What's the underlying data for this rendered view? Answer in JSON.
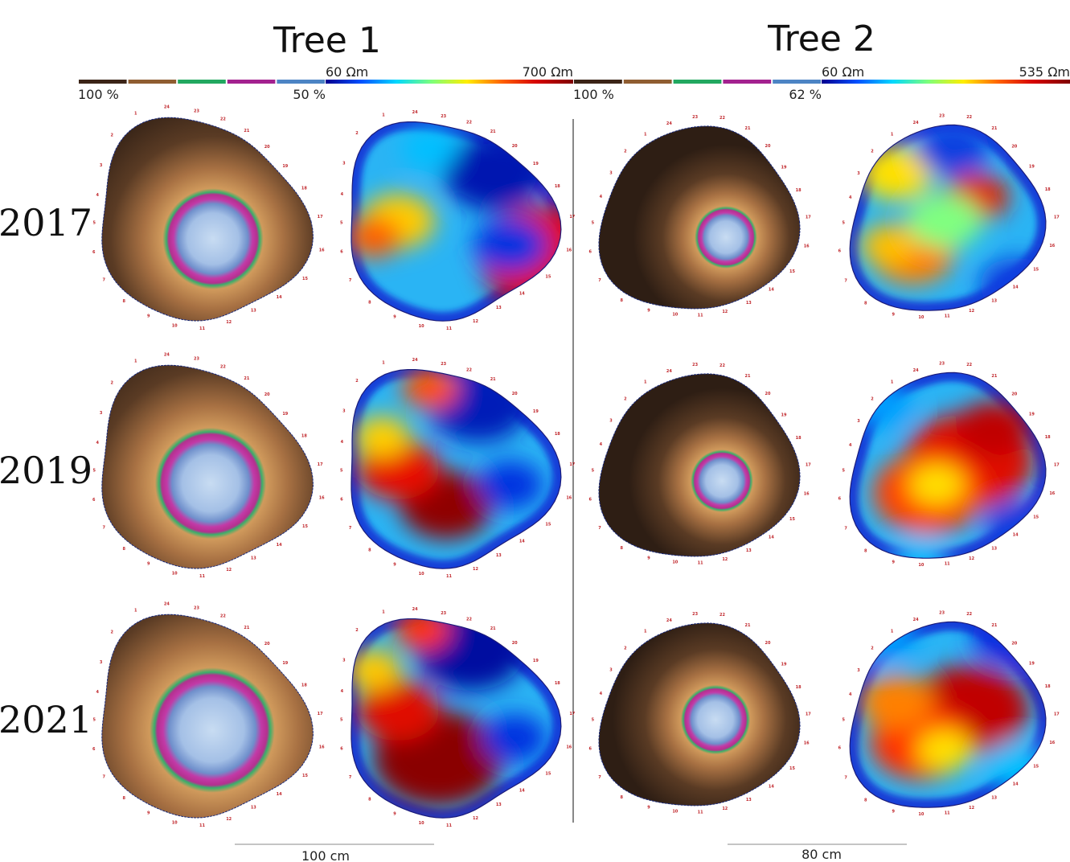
{
  "trees": [
    {
      "title": "Tree 1",
      "acoustic_scale": {
        "max_label": "100 %",
        "min_label": "50 %",
        "colors": [
          "#3b2417",
          "#8f5d31",
          "#22a860",
          "#a3218f",
          "#4c84c4"
        ]
      },
      "ert_scale": {
        "min_label": "60 Ωm",
        "max_label": "700 Ωm",
        "gradient": [
          "#00008f",
          "#0050ff",
          "#00d8ff",
          "#7dff7a",
          "#ffee00",
          "#ff6000",
          "#d40000",
          "#7f0000"
        ]
      },
      "scale_bar": "100 cm"
    },
    {
      "title": "Tree 2",
      "acoustic_scale": {
        "max_label": "100 %",
        "min_label": "62 %",
        "colors": [
          "#3b2417",
          "#8f5d31",
          "#22a860",
          "#a3218f",
          "#4c84c4"
        ]
      },
      "ert_scale": {
        "min_label": "60 Ωm",
        "max_label": "535 Ωm",
        "gradient": [
          "#00008f",
          "#0050ff",
          "#00d8ff",
          "#7dff7a",
          "#ffee00",
          "#ff6000",
          "#d40000",
          "#7f0000"
        ]
      },
      "scale_bar": "80 cm"
    }
  ],
  "years": [
    "2017",
    "2019",
    "2021"
  ],
  "sensor_labels": [
    "1",
    "2",
    "3",
    "4",
    "5",
    "6",
    "7",
    "8",
    "9",
    "10",
    "11",
    "12",
    "13",
    "14",
    "15",
    "16",
    "17",
    "18",
    "19",
    "20",
    "21",
    "22",
    "23",
    "24"
  ]
}
